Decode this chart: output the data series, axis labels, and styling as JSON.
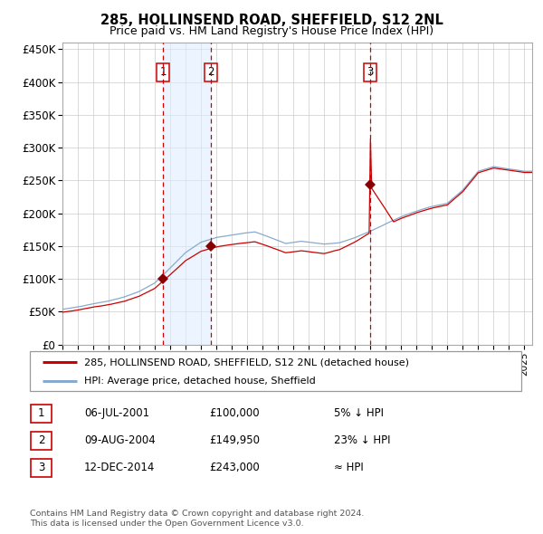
{
  "title1": "285, HOLLINSEND ROAD, SHEFFIELD, S12 2NL",
  "title2": "Price paid vs. HM Land Registry's House Price Index (HPI)",
  "ylim": [
    0,
    460000
  ],
  "yticks": [
    0,
    50000,
    100000,
    150000,
    200000,
    250000,
    300000,
    350000,
    400000,
    450000
  ],
  "ytick_labels": [
    "£0",
    "£50K",
    "£100K",
    "£150K",
    "£200K",
    "£250K",
    "£300K",
    "£350K",
    "£400K",
    "£450K"
  ],
  "sale1_date": 2001.52,
  "sale1_price": 100000,
  "sale2_date": 2004.62,
  "sale2_price": 149950,
  "sale3_date": 2014.96,
  "sale3_price": 243000,
  "legend_line1": "285, HOLLINSEND ROAD, SHEFFIELD, S12 2NL (detached house)",
  "legend_line2": "HPI: Average price, detached house, Sheffield",
  "table_rows": [
    {
      "num": "1",
      "date": "06-JUL-2001",
      "price": "£100,000",
      "hpi": "5% ↓ HPI"
    },
    {
      "num": "2",
      "date": "09-AUG-2004",
      "price": "£149,950",
      "hpi": "23% ↓ HPI"
    },
    {
      "num": "3",
      "date": "12-DEC-2014",
      "price": "£243,000",
      "hpi": "≈ HPI"
    }
  ],
  "footnote1": "Contains HM Land Registry data © Crown copyright and database right 2024.",
  "footnote2": "This data is licensed under the Open Government Licence v3.0.",
  "red_color": "#cc0000",
  "blue_color": "#88aacc",
  "bg_shade_color": "#ddeeff",
  "grid_color": "#cccccc",
  "marker_color": "#880000"
}
